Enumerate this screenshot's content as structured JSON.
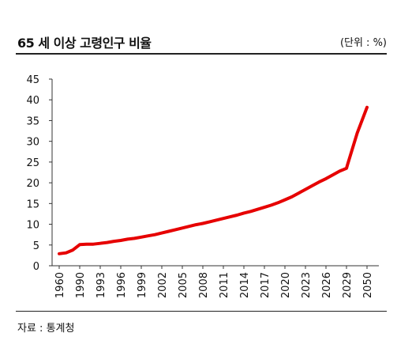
{
  "header": {
    "title": "65 세 이상 고령인구 비율",
    "unit": "(단위 : %)"
  },
  "footer": {
    "source": "자료 : 통계청"
  },
  "chart_data": {
    "type": "line",
    "title": "65 세 이상 고령인구 비율",
    "xlabel": "",
    "ylabel": "",
    "ylim": [
      0,
      45
    ],
    "y_ticks": [
      0,
      5,
      10,
      15,
      20,
      25,
      30,
      35,
      40,
      45
    ],
    "x_tick_labels": [
      "1960",
      "1990",
      "1993",
      "1996",
      "1999",
      "2002",
      "2005",
      "2008",
      "2011",
      "2014",
      "2017",
      "2020",
      "2023",
      "2026",
      "2029",
      "2050"
    ],
    "grid": false,
    "line_color": "#e60000",
    "series": [
      {
        "x": [
          "1960",
          "1970",
          "1980",
          "1990",
          "1991",
          "1992",
          "1993",
          "1994",
          "1995",
          "1996",
          "1997",
          "1998",
          "1999",
          "2000",
          "2001",
          "2002",
          "2003",
          "2004",
          "2005",
          "2006",
          "2007",
          "2008",
          "2009",
          "2010",
          "2011",
          "2012",
          "2013",
          "2014",
          "2015",
          "2016",
          "2017",
          "2018",
          "2019",
          "2020",
          "2021",
          "2022",
          "2023",
          "2024",
          "2025",
          "2026",
          "2027",
          "2028",
          "2029",
          "2030",
          "2040",
          "2050"
        ],
        "values": [
          2.9,
          3.1,
          3.8,
          5.1,
          5.2,
          5.2,
          5.4,
          5.6,
          5.9,
          6.1,
          6.4,
          6.6,
          6.9,
          7.2,
          7.5,
          7.9,
          8.3,
          8.7,
          9.1,
          9.5,
          9.9,
          10.2,
          10.6,
          11.0,
          11.4,
          11.8,
          12.2,
          12.7,
          13.1,
          13.6,
          14.1,
          14.6,
          15.2,
          15.9,
          16.6,
          17.5,
          18.4,
          19.3,
          20.2,
          21.0,
          21.9,
          22.8,
          23.5,
          24.3,
          32.0,
          38.2
        ]
      }
    ]
  }
}
